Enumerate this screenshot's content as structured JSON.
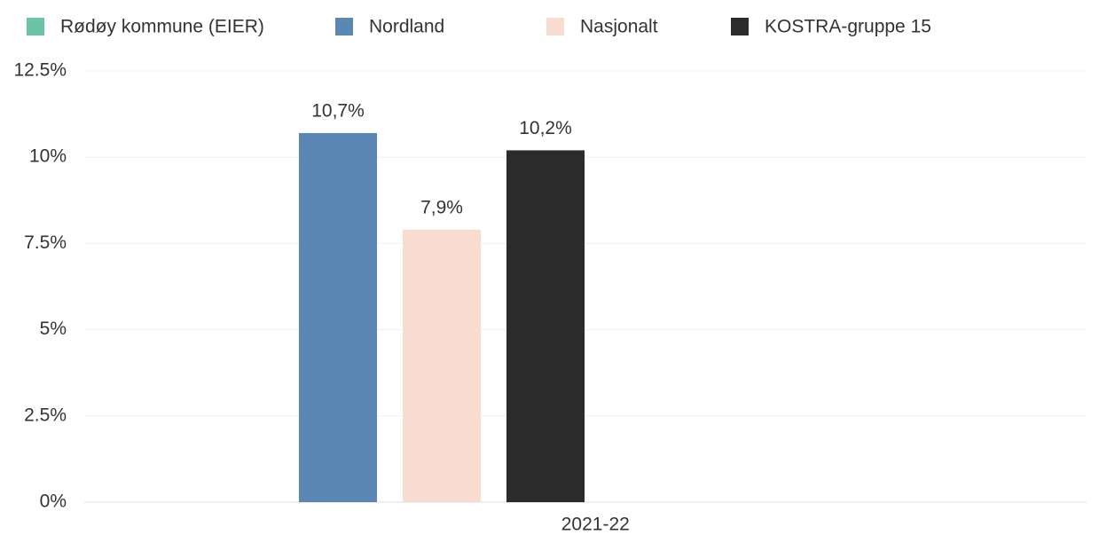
{
  "chart_data": {
    "type": "bar",
    "categories": [
      "2021-22"
    ],
    "series": [
      {
        "name": "Rødøy kommune (EIER)",
        "color": "#6cc4a4",
        "values": [
          null
        ]
      },
      {
        "name": "Nordland",
        "color": "#5b87b5",
        "values": [
          10.7
        ],
        "value_labels": [
          "10,7%"
        ]
      },
      {
        "name": "Nasjonalt",
        "color": "#f8dccf",
        "values": [
          7.9
        ],
        "value_labels": [
          "7,9%"
        ]
      },
      {
        "name": "KOSTRA-gruppe 15",
        "color": "#2b2b2b",
        "values": [
          10.2
        ],
        "value_labels": [
          "10,2%"
        ]
      }
    ],
    "ylim": [
      0,
      12.5
    ],
    "yticks": [
      {
        "value": 0,
        "label": "0%"
      },
      {
        "value": 2.5,
        "label": "2.5%"
      },
      {
        "value": 5,
        "label": "5%"
      },
      {
        "value": 7.5,
        "label": "7.5%"
      },
      {
        "value": 10,
        "label": "10%"
      },
      {
        "value": 12.5,
        "label": "12.5%"
      }
    ],
    "grid": true,
    "legend": "top"
  }
}
